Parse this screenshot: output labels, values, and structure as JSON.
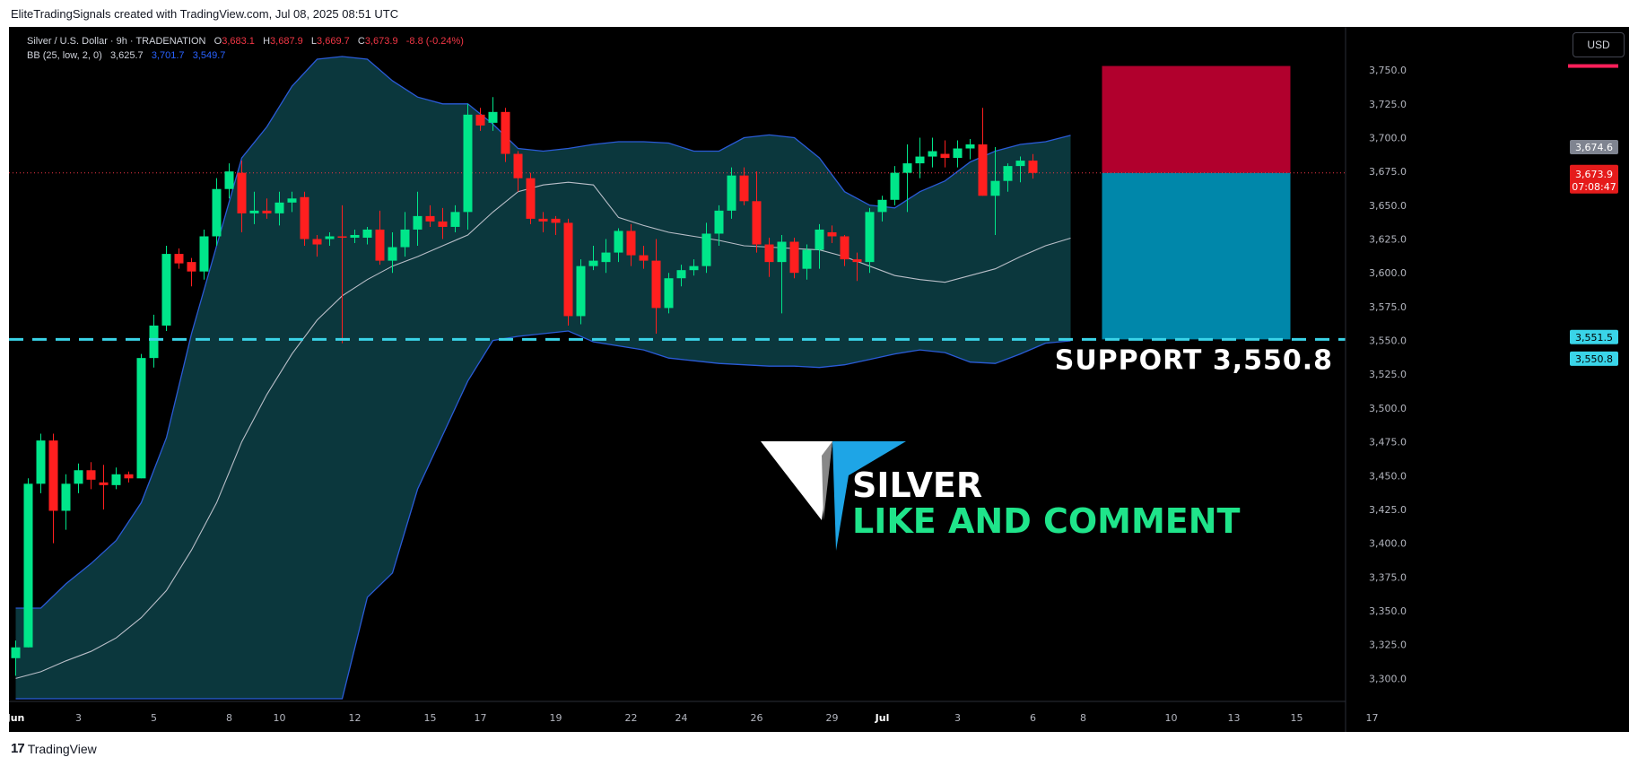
{
  "header": {
    "caption": "EliteTradingSignals created with TradingView.com, Jul 08, 2025 08:51 UTC"
  },
  "legend": {
    "symbol": "Silver / U.S. Dollar · 9h · TRADENATION",
    "o_label": "O",
    "o_value": "3,683.1",
    "h_label": "H",
    "h_value": "3,687.9",
    "l_label": "L",
    "l_value": "3,669.7",
    "c_label": "C",
    "c_value": "3,673.9",
    "change": "-8.8 (-0.24%)",
    "bb_label": "BB (25, low, 2, 0)",
    "bb_basis": "3,625.7",
    "bb_upper": "3,701.7",
    "bb_lower": "3,549.7"
  },
  "currency_button": "USD",
  "annotations": {
    "support_text": "SUPPORT  3,550.8",
    "logo_line1": "SILVER",
    "logo_line2": "LIKE AND COMMENT"
  },
  "price_tags": {
    "gray": "3,674.6",
    "last_price": "3,673.9",
    "countdown": "07:08:47",
    "support_a": "3,551.5",
    "support_b": "3,550.8"
  },
  "footer": {
    "brand": "TradingView",
    "logo_glyph": "17"
  },
  "colors": {
    "background": "#000000",
    "up": "#00e68a",
    "down": "#ff1f1f",
    "band_fill": "#0c3a40",
    "band_line": "#2a5bd7",
    "basis_line": "#b9bec8",
    "support_line": "#3ad4e8",
    "risk_box": "#b1002d",
    "reward_box": "#0087aa",
    "logo_blue": "#1ea5e6",
    "logo_green": "#1fe48a"
  },
  "chart_data": {
    "type": "candlestick",
    "title": "Silver / U.S. Dollar · 9h · TRADENATION",
    "y_axis": {
      "ticks": [
        "3,300.0",
        "3,325.0",
        "3,350.0",
        "3,375.0",
        "3,400.0",
        "3,425.0",
        "3,450.0",
        "3,475.0",
        "3,500.0",
        "3,525.0",
        "3,550.0",
        "3,575.0",
        "3,600.0",
        "3,625.0",
        "3,650.0",
        "3,675.0",
        "3,700.0",
        "3,725.0",
        "3,750.0"
      ],
      "ylim": [
        3285,
        3762
      ]
    },
    "x_axis": {
      "ticks": [
        {
          "label": "Jun",
          "bar": 0,
          "bold": true
        },
        {
          "label": "3",
          "bar": 5
        },
        {
          "label": "5",
          "bar": 11
        },
        {
          "label": "8",
          "bar": 17
        },
        {
          "label": "10",
          "bar": 21
        },
        {
          "label": "12",
          "bar": 27
        },
        {
          "label": "15",
          "bar": 33
        },
        {
          "label": "17",
          "bar": 37
        },
        {
          "label": "19",
          "bar": 43
        },
        {
          "label": "22",
          "bar": 49
        },
        {
          "label": "24",
          "bar": 53
        },
        {
          "label": "26",
          "bar": 59
        },
        {
          "label": "29",
          "bar": 65
        },
        {
          "label": "Jul",
          "bar": 69,
          "bold": true
        },
        {
          "label": "3",
          "bar": 75
        },
        {
          "label": "6",
          "bar": 81
        },
        {
          "label": "8",
          "bar": 85
        },
        {
          "label": "10",
          "bar": 92
        },
        {
          "label": "13",
          "bar": 97
        },
        {
          "label": "15",
          "bar": 102
        },
        {
          "label": "17",
          "bar": 108
        }
      ]
    },
    "candles": [
      [
        3315,
        3328,
        3302,
        3323
      ],
      [
        3323,
        3448,
        3323,
        3444
      ],
      [
        3444,
        3481,
        3437,
        3476
      ],
      [
        3476,
        3481,
        3400,
        3424
      ],
      [
        3424,
        3451,
        3410,
        3444
      ],
      [
        3444,
        3459,
        3437,
        3454
      ],
      [
        3454,
        3460,
        3440,
        3447
      ],
      [
        3445,
        3458,
        3425,
        3443
      ],
      [
        3443,
        3456,
        3440,
        3451
      ],
      [
        3451,
        3453,
        3445,
        3448
      ],
      [
        3448,
        3540,
        3448,
        3537
      ],
      [
        3537,
        3569,
        3530,
        3561
      ],
      [
        3561,
        3620,
        3557,
        3614
      ],
      [
        3614,
        3618,
        3603,
        3607
      ],
      [
        3608,
        3611,
        3590,
        3601
      ],
      [
        3601,
        3632,
        3595,
        3627
      ],
      [
        3627,
        3670,
        3620,
        3662
      ],
      [
        3662,
        3681,
        3655,
        3675
      ],
      [
        3674,
        3683,
        3630,
        3644
      ],
      [
        3644,
        3660,
        3636,
        3646
      ],
      [
        3646,
        3655,
        3640,
        3644
      ],
      [
        3644,
        3660,
        3635,
        3652
      ],
      [
        3652,
        3660,
        3645,
        3655
      ],
      [
        3656,
        3660,
        3620,
        3625
      ],
      [
        3625,
        3628,
        3612,
        3621
      ],
      [
        3625,
        3630,
        3620,
        3627
      ],
      [
        3627,
        3650,
        3548,
        3626
      ],
      [
        3626,
        3632,
        3622,
        3628
      ],
      [
        3626,
        3634,
        3621,
        3632
      ],
      [
        3632,
        3646,
        3606,
        3609
      ],
      [
        3609,
        3630,
        3600,
        3619
      ],
      [
        3619,
        3645,
        3612,
        3632
      ],
      [
        3632,
        3660,
        3620,
        3642
      ],
      [
        3642,
        3650,
        3634,
        3638
      ],
      [
        3638,
        3648,
        3625,
        3634
      ],
      [
        3634,
        3650,
        3630,
        3645
      ],
      [
        3645,
        3725,
        3632,
        3717
      ],
      [
        3717,
        3722,
        3705,
        3709
      ],
      [
        3711,
        3730,
        3705,
        3719
      ],
      [
        3719,
        3722,
        3682,
        3688
      ],
      [
        3688,
        3690,
        3660,
        3670
      ],
      [
        3670,
        3674,
        3636,
        3640
      ],
      [
        3640,
        3645,
        3630,
        3638
      ],
      [
        3640,
        3642,
        3628,
        3637
      ],
      [
        3637,
        3640,
        3561,
        3568
      ],
      [
        3568,
        3610,
        3562,
        3605
      ],
      [
        3605,
        3620,
        3602,
        3609
      ],
      [
        3608,
        3625,
        3600,
        3615
      ],
      [
        3615,
        3633,
        3608,
        3631
      ],
      [
        3631,
        3636,
        3605,
        3613
      ],
      [
        3613,
        3620,
        3603,
        3609
      ],
      [
        3609,
        3625,
        3555,
        3574
      ],
      [
        3574,
        3600,
        3570,
        3596
      ],
      [
        3596,
        3606,
        3590,
        3602
      ],
      [
        3602,
        3610,
        3598,
        3605
      ],
      [
        3605,
        3637,
        3600,
        3629
      ],
      [
        3629,
        3650,
        3620,
        3646
      ],
      [
        3646,
        3678,
        3640,
        3672
      ],
      [
        3672,
        3678,
        3650,
        3653
      ],
      [
        3653,
        3675,
        3615,
        3621
      ],
      [
        3621,
        3626,
        3597,
        3608
      ],
      [
        3608,
        3628,
        3570,
        3623
      ],
      [
        3623,
        3626,
        3596,
        3600
      ],
      [
        3603,
        3621,
        3595,
        3617
      ],
      [
        3617,
        3636,
        3603,
        3632
      ],
      [
        3630,
        3635,
        3622,
        3627
      ],
      [
        3627,
        3628,
        3605,
        3610
      ],
      [
        3610,
        3615,
        3594,
        3608
      ],
      [
        3608,
        3648,
        3600,
        3645
      ],
      [
        3645,
        3657,
        3638,
        3654
      ],
      [
        3654,
        3679,
        3650,
        3674
      ],
      [
        3674,
        3695,
        3645,
        3681
      ],
      [
        3681,
        3700,
        3670,
        3686
      ],
      [
        3686,
        3700,
        3678,
        3690
      ],
      [
        3688,
        3698,
        3678,
        3685
      ],
      [
        3685,
        3698,
        3678,
        3692
      ],
      [
        3692,
        3699,
        3684,
        3695
      ],
      [
        3695,
        3722,
        3657,
        3657
      ],
      [
        3657,
        3693,
        3628,
        3668
      ],
      [
        3668,
        3681,
        3660,
        3679
      ],
      [
        3679,
        3686,
        3667,
        3683
      ],
      [
        3683,
        3687.9,
        3669.7,
        3673.9
      ]
    ],
    "candle_format": [
      "open",
      "high",
      "low",
      "close"
    ],
    "bollinger_bands": {
      "label": "BB (25, low, 2, 0)",
      "upper": [
        [
          0,
          3352
        ],
        [
          2,
          3352
        ],
        [
          4,
          3370
        ],
        [
          6,
          3385
        ],
        [
          8,
          3402
        ],
        [
          10,
          3430
        ],
        [
          12,
          3478
        ],
        [
          14,
          3555
        ],
        [
          16,
          3620
        ],
        [
          18,
          3685
        ],
        [
          20,
          3708
        ],
        [
          22,
          3738
        ],
        [
          24,
          3758
        ],
        [
          26,
          3760
        ],
        [
          28,
          3758
        ],
        [
          30,
          3742
        ],
        [
          32,
          3730
        ],
        [
          34,
          3725
        ],
        [
          36,
          3725
        ],
        [
          38,
          3710
        ],
        [
          40,
          3692
        ],
        [
          42,
          3690
        ],
        [
          44,
          3692
        ],
        [
          46,
          3695
        ],
        [
          48,
          3697
        ],
        [
          50,
          3697
        ],
        [
          52,
          3696
        ],
        [
          54,
          3690
        ],
        [
          56,
          3690
        ],
        [
          58,
          3700
        ],
        [
          60,
          3702
        ],
        [
          62,
          3700
        ],
        [
          64,
          3685
        ],
        [
          66,
          3660
        ],
        [
          68,
          3650
        ],
        [
          70,
          3648
        ],
        [
          72,
          3660
        ],
        [
          74,
          3668
        ],
        [
          76,
          3682
        ],
        [
          78,
          3690
        ],
        [
          80,
          3695
        ],
        [
          82,
          3697
        ],
        [
          84,
          3701.7
        ]
      ],
      "basis": [
        [
          0,
          3300
        ],
        [
          2,
          3305
        ],
        [
          4,
          3313
        ],
        [
          6,
          3320
        ],
        [
          8,
          3330
        ],
        [
          10,
          3345
        ],
        [
          12,
          3365
        ],
        [
          14,
          3395
        ],
        [
          16,
          3430
        ],
        [
          18,
          3475
        ],
        [
          20,
          3510
        ],
        [
          22,
          3540
        ],
        [
          24,
          3565
        ],
        [
          26,
          3583
        ],
        [
          28,
          3595
        ],
        [
          30,
          3605
        ],
        [
          32,
          3612
        ],
        [
          34,
          3620
        ],
        [
          36,
          3628
        ],
        [
          38,
          3645
        ],
        [
          40,
          3660
        ],
        [
          42,
          3665
        ],
        [
          44,
          3667
        ],
        [
          46,
          3665
        ],
        [
          48,
          3641
        ],
        [
          50,
          3635
        ],
        [
          52,
          3630
        ],
        [
          54,
          3627
        ],
        [
          56,
          3624
        ],
        [
          58,
          3620
        ],
        [
          60,
          3619
        ],
        [
          62,
          3618
        ],
        [
          64,
          3617
        ],
        [
          66,
          3612
        ],
        [
          68,
          3605
        ],
        [
          70,
          3598
        ],
        [
          72,
          3595
        ],
        [
          74,
          3593
        ],
        [
          76,
          3598
        ],
        [
          78,
          3603
        ],
        [
          80,
          3612
        ],
        [
          82,
          3620
        ],
        [
          84,
          3625.7
        ]
      ],
      "lower": [
        [
          0,
          3285
        ],
        [
          10,
          3285
        ],
        [
          12,
          3285
        ],
        [
          14,
          3285
        ],
        [
          16,
          3285
        ],
        [
          18,
          3285
        ],
        [
          20,
          3285
        ],
        [
          22,
          3285
        ],
        [
          24,
          3285
        ],
        [
          26,
          3285
        ],
        [
          28,
          3360
        ],
        [
          30,
          3378
        ],
        [
          32,
          3440
        ],
        [
          34,
          3480
        ],
        [
          36,
          3520
        ],
        [
          38,
          3550
        ],
        [
          40,
          3553
        ],
        [
          42,
          3555
        ],
        [
          44,
          3557
        ],
        [
          46,
          3549
        ],
        [
          48,
          3546
        ],
        [
          50,
          3543
        ],
        [
          52,
          3537
        ],
        [
          54,
          3535
        ],
        [
          56,
          3533
        ],
        [
          58,
          3532
        ],
        [
          60,
          3531
        ],
        [
          62,
          3531
        ],
        [
          64,
          3530
        ],
        [
          66,
          3532
        ],
        [
          68,
          3536
        ],
        [
          70,
          3540
        ],
        [
          72,
          3543
        ],
        [
          74,
          3541
        ],
        [
          76,
          3534
        ],
        [
          78,
          3533
        ],
        [
          80,
          3540
        ],
        [
          82,
          3548
        ],
        [
          84,
          3549.7
        ]
      ]
    },
    "support_level": 3550.8,
    "position_box": {
      "target_top": 3753,
      "entry": 3673.9,
      "stop": 3550.8,
      "from_bar": 86.5,
      "to_bar": 101.5
    }
  }
}
